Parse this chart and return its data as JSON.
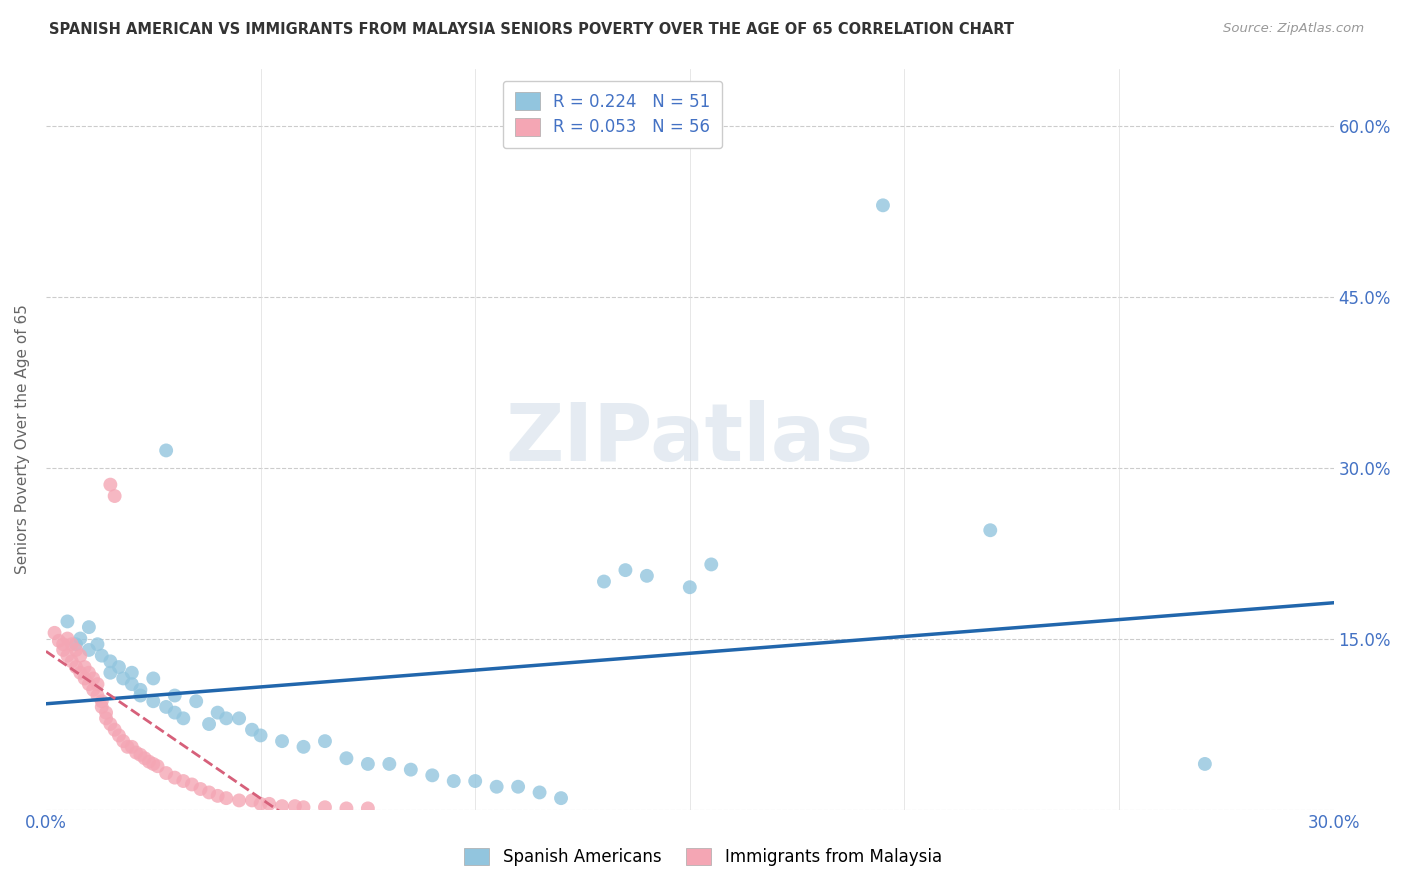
{
  "title": "SPANISH AMERICAN VS IMMIGRANTS FROM MALAYSIA SENIORS POVERTY OVER THE AGE OF 65 CORRELATION CHART",
  "source": "Source: ZipAtlas.com",
  "ylabel": "Seniors Poverty Over the Age of 65",
  "xlim": [
    0.0,
    0.3
  ],
  "ylim": [
    0.0,
    0.65
  ],
  "xtick_positions": [
    0.0,
    0.05,
    0.1,
    0.15,
    0.2,
    0.25,
    0.3
  ],
  "xtick_labels": [
    "0.0%",
    "",
    "",
    "",
    "",
    "",
    "30.0%"
  ],
  "ytick_positions": [
    0.0,
    0.15,
    0.3,
    0.45,
    0.6
  ],
  "ytick_labels": [
    "",
    "15.0%",
    "30.0%",
    "45.0%",
    "60.0%"
  ],
  "blue_R": 0.224,
  "blue_N": 51,
  "pink_R": 0.053,
  "pink_N": 56,
  "blue_color": "#92c5de",
  "pink_color": "#f4a6b4",
  "blue_line_color": "#2166ac",
  "pink_line_color": "#d6607a",
  "watermark": "ZIPatlas",
  "blue_scatter_x": [
    0.005,
    0.007,
    0.008,
    0.01,
    0.01,
    0.012,
    0.013,
    0.015,
    0.015,
    0.017,
    0.018,
    0.02,
    0.02,
    0.022,
    0.022,
    0.025,
    0.025,
    0.028,
    0.03,
    0.03,
    0.032,
    0.035,
    0.038,
    0.04,
    0.042,
    0.045,
    0.048,
    0.05,
    0.055,
    0.06,
    0.065,
    0.07,
    0.075,
    0.08,
    0.085,
    0.09,
    0.095,
    0.1,
    0.105,
    0.11,
    0.115,
    0.12,
    0.13,
    0.135,
    0.14,
    0.15,
    0.155,
    0.195,
    0.22,
    0.27,
    0.028
  ],
  "blue_scatter_y": [
    0.165,
    0.145,
    0.15,
    0.16,
    0.14,
    0.145,
    0.135,
    0.13,
    0.12,
    0.125,
    0.115,
    0.12,
    0.11,
    0.105,
    0.1,
    0.115,
    0.095,
    0.09,
    0.1,
    0.085,
    0.08,
    0.095,
    0.075,
    0.085,
    0.08,
    0.08,
    0.07,
    0.065,
    0.06,
    0.055,
    0.06,
    0.045,
    0.04,
    0.04,
    0.035,
    0.03,
    0.025,
    0.025,
    0.02,
    0.02,
    0.015,
    0.01,
    0.2,
    0.21,
    0.205,
    0.195,
    0.215,
    0.53,
    0.245,
    0.04,
    0.315
  ],
  "pink_scatter_x": [
    0.002,
    0.003,
    0.004,
    0.004,
    0.005,
    0.005,
    0.006,
    0.006,
    0.007,
    0.007,
    0.008,
    0.008,
    0.009,
    0.009,
    0.01,
    0.01,
    0.011,
    0.011,
    0.012,
    0.012,
    0.013,
    0.013,
    0.014,
    0.014,
    0.015,
    0.015,
    0.016,
    0.016,
    0.017,
    0.018,
    0.019,
    0.02,
    0.021,
    0.022,
    0.023,
    0.024,
    0.025,
    0.026,
    0.028,
    0.03,
    0.032,
    0.034,
    0.036,
    0.038,
    0.04,
    0.042,
    0.045,
    0.048,
    0.05,
    0.052,
    0.055,
    0.058,
    0.06,
    0.065,
    0.07,
    0.075
  ],
  "pink_scatter_y": [
    0.155,
    0.148,
    0.145,
    0.14,
    0.15,
    0.135,
    0.145,
    0.13,
    0.14,
    0.125,
    0.135,
    0.12,
    0.125,
    0.115,
    0.12,
    0.11,
    0.115,
    0.105,
    0.11,
    0.1,
    0.095,
    0.09,
    0.085,
    0.08,
    0.285,
    0.075,
    0.275,
    0.07,
    0.065,
    0.06,
    0.055,
    0.055,
    0.05,
    0.048,
    0.045,
    0.042,
    0.04,
    0.038,
    0.032,
    0.028,
    0.025,
    0.022,
    0.018,
    0.015,
    0.012,
    0.01,
    0.008,
    0.008,
    0.005,
    0.005,
    0.003,
    0.003,
    0.002,
    0.002,
    0.001,
    0.001
  ]
}
